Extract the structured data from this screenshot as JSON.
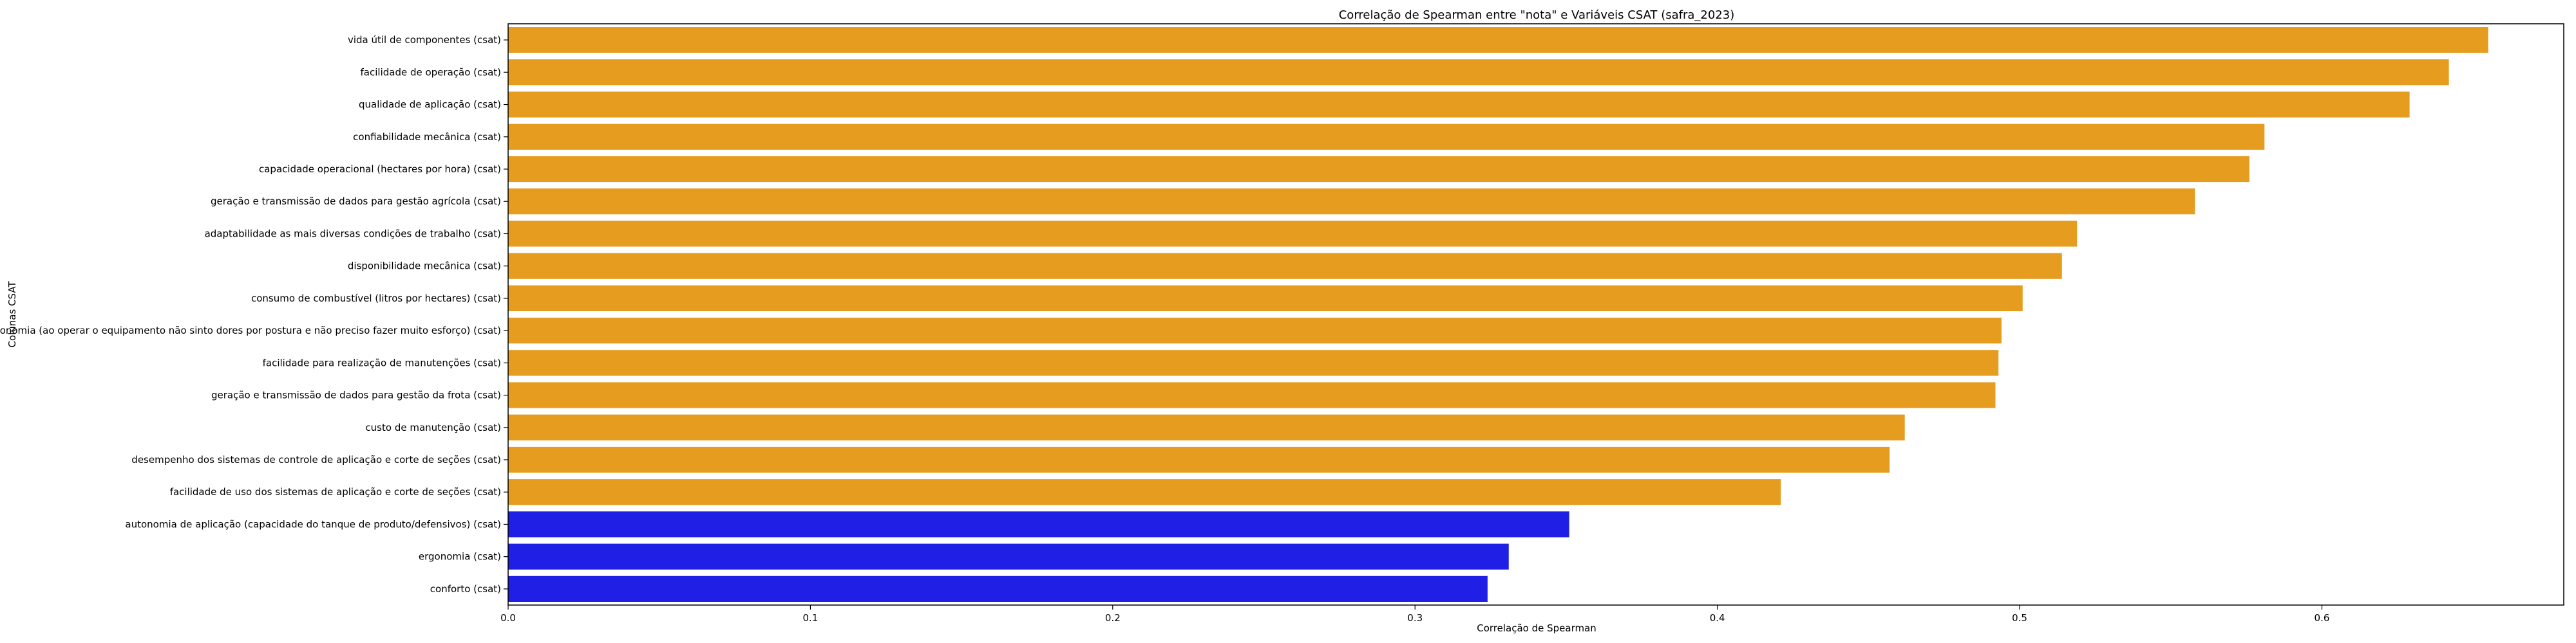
{
  "chart_data": {
    "type": "bar",
    "orientation": "horizontal",
    "title": "Correlação de Spearman entre \"nota\" e Variáveis CSAT (safra_2023)",
    "xlabel": "Correlação de Spearman",
    "ylabel": "Colunas CSAT",
    "xlim": [
      0,
      0.68
    ],
    "xticks": [
      "0.0",
      "0.1",
      "0.2",
      "0.3",
      "0.4",
      "0.5",
      "0.6"
    ],
    "grid": false,
    "categories": [
      "vida útil de componentes (csat)",
      "facilidade de operação (csat)",
      "qualidade de aplicação (csat)",
      "confiabilidade mecânica (csat)",
      "capacidade operacional (hectares por hora) (csat)",
      "geração e transmissão de dados para gestão agrícola (csat)",
      "adaptabilidade as mais diversas condições de trabalho (csat)",
      "disponibilidade mecânica (csat)",
      "consumo de combustível (litros por hectares) (csat)",
      "ergonomia (ao operar o equipamento não sinto dores por postura e não preciso fazer muito esforço) (csat)",
      "facilidade para realização de manutenções (csat)",
      "geração e transmissão de dados para gestão da frota (csat)",
      "custo de manutenção (csat)",
      "desempenho dos sistemas de controle de aplicação e corte de seções (csat)",
      "facilidade de uso dos sistemas de aplicação e corte de seções (csat)",
      "autonomia de aplicação (capacidade do tanque de produto/defensivos) (csat)",
      "ergonomia (csat)",
      "conforto (csat)"
    ],
    "values": [
      0.655,
      0.642,
      0.629,
      0.581,
      0.576,
      0.558,
      0.519,
      0.514,
      0.501,
      0.494,
      0.493,
      0.492,
      0.462,
      0.457,
      0.421,
      0.351,
      0.331,
      0.324
    ],
    "bar_colors": [
      "#e59c1f",
      "#e59c1f",
      "#e59c1f",
      "#e59c1f",
      "#e59c1f",
      "#e59c1f",
      "#e59c1f",
      "#e59c1f",
      "#e59c1f",
      "#e59c1f",
      "#e59c1f",
      "#e59c1f",
      "#e59c1f",
      "#e59c1f",
      "#e59c1f",
      "#1f1fe6",
      "#1f1fe6",
      "#1f1fe6"
    ]
  }
}
